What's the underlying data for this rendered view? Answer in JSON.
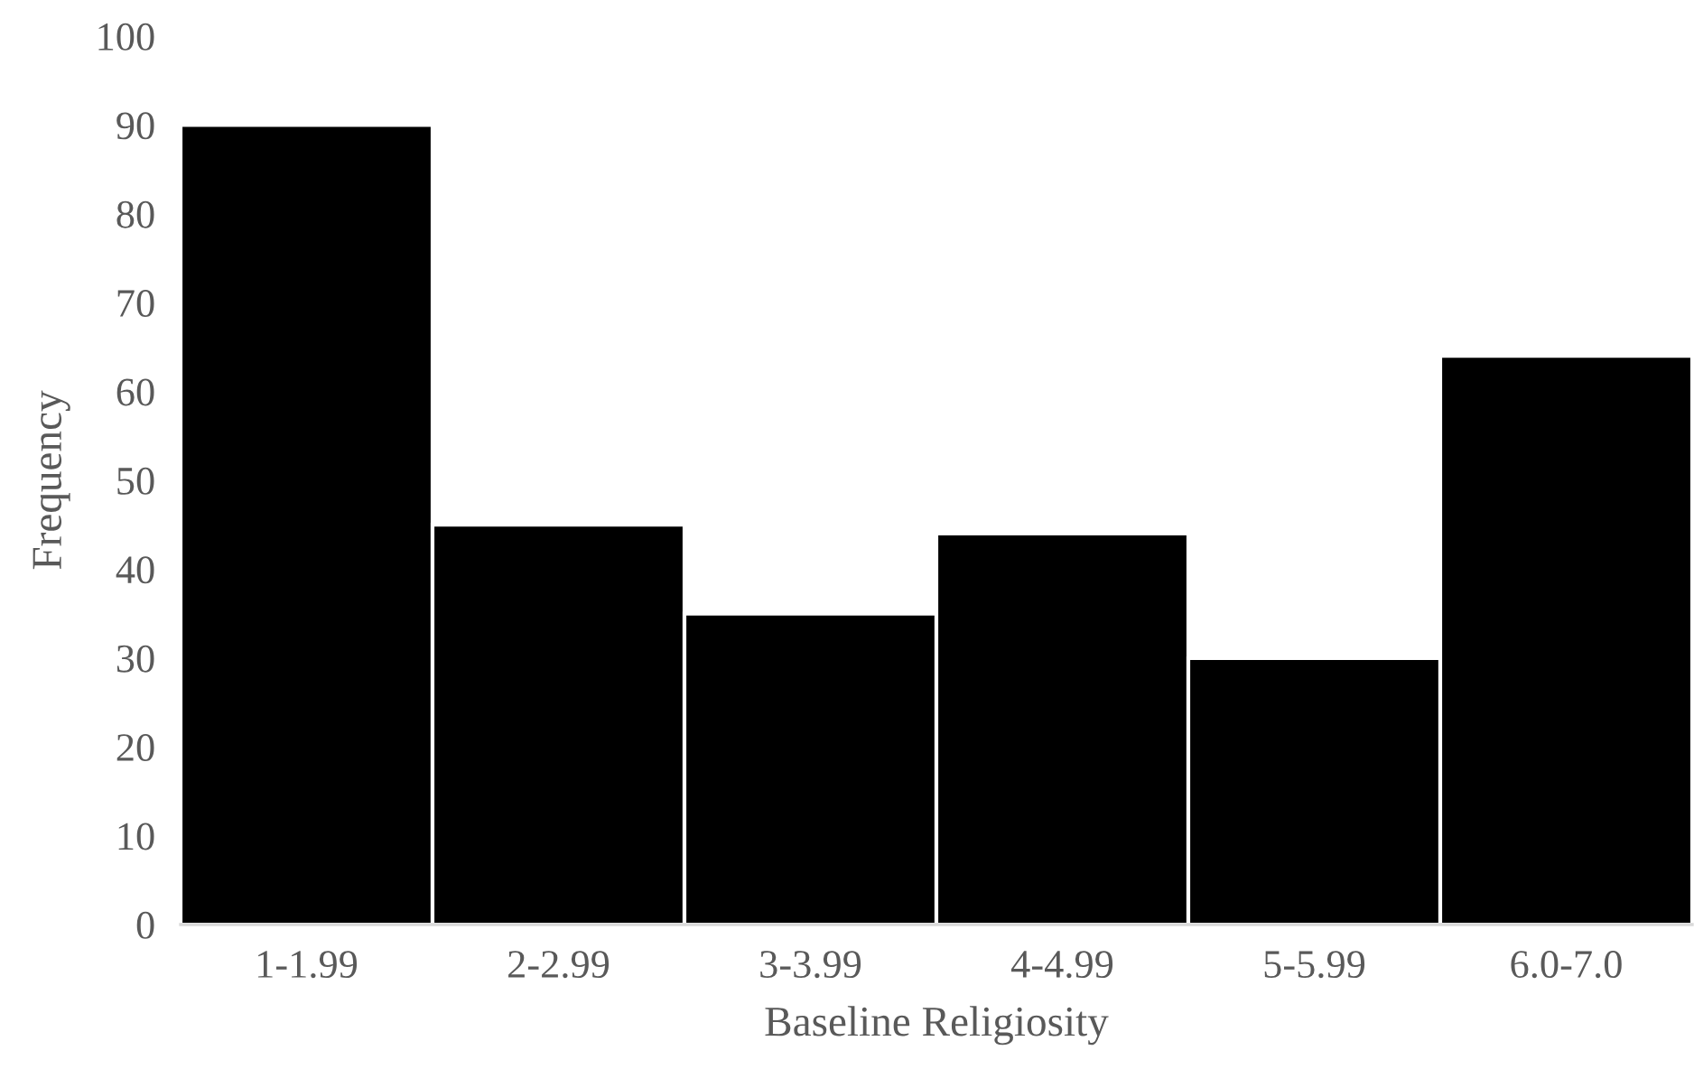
{
  "chart_data": {
    "type": "bar",
    "xlabel": "Baseline Religiosity",
    "ylabel": "Frequency",
    "categories": [
      "1-1.99",
      "2-2.99",
      "3-3.99",
      "4-4.99",
      "5-5.99",
      "6.0-7.0"
    ],
    "values": [
      90,
      45,
      35,
      44,
      30,
      64
    ],
    "color": "#000000",
    "ylim": [
      0,
      100
    ],
    "yticks": [
      0,
      10,
      20,
      30,
      40,
      50,
      60,
      70,
      80,
      90,
      100
    ],
    "grid": false,
    "legend": false
  }
}
